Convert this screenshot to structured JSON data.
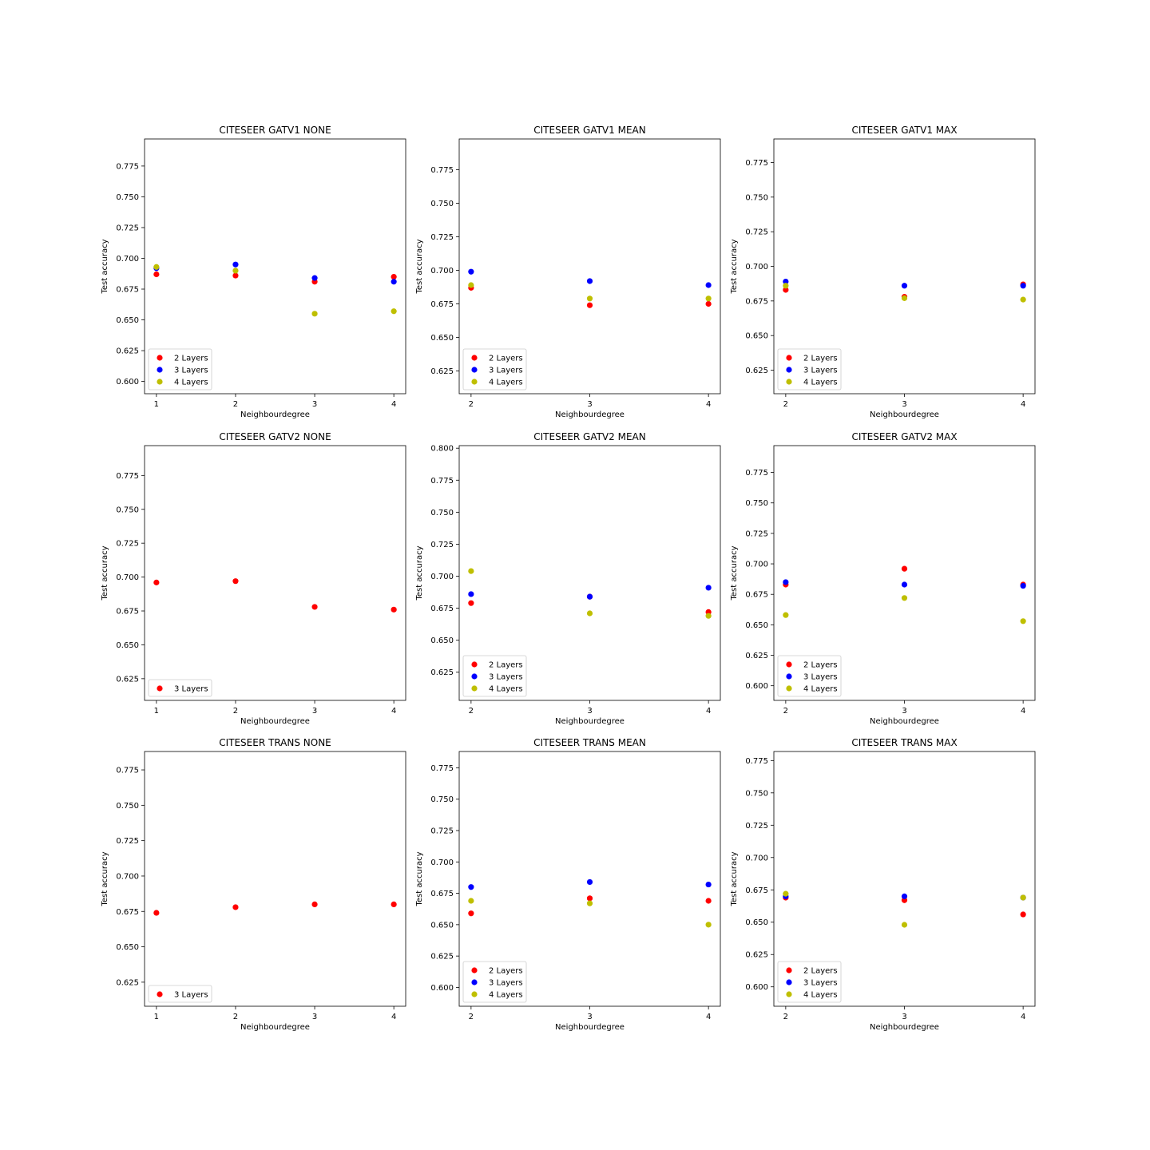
{
  "chart_data": [
    {
      "type": "scatter",
      "title": "CITESEER   GATV1   NONE",
      "xlabel": "Neighbourdegree",
      "ylabel": "Test accuracy",
      "x": [
        1,
        2,
        3,
        4
      ],
      "xticks": [
        "1",
        "2",
        "3",
        "4"
      ],
      "xlim": [
        0.85,
        4.15
      ],
      "ylim": [
        0.59,
        0.797
      ],
      "yticks": [
        "0.600",
        "0.625",
        "0.650",
        "0.675",
        "0.700",
        "0.725",
        "0.750",
        "0.775"
      ],
      "grid": false,
      "legend_position": "lower-left",
      "series": [
        {
          "name": "2 Layers",
          "color": "#ff0000",
          "values": [
            0.687,
            0.686,
            0.681,
            0.685
          ]
        },
        {
          "name": "3 Layers",
          "color": "#0000ff",
          "values": [
            0.692,
            0.695,
            0.684,
            0.681
          ]
        },
        {
          "name": "4 Layers",
          "color": "#bfbf00",
          "values": [
            0.693,
            0.69,
            0.655,
            0.657
          ]
        }
      ]
    },
    {
      "type": "scatter",
      "title": "CITESEER   GATV1   MEAN",
      "xlabel": "Neighbourdegree",
      "ylabel": "Test accuracy",
      "x": [
        2,
        3,
        4
      ],
      "xticks": [
        "2",
        "3",
        "4"
      ],
      "xlim": [
        1.9,
        4.1
      ],
      "ylim": [
        0.608,
        0.798
      ],
      "yticks": [
        "0.625",
        "0.650",
        "0.675",
        "0.700",
        "0.725",
        "0.750",
        "0.775"
      ],
      "grid": false,
      "legend_position": "lower-left",
      "series": [
        {
          "name": "2 Layers",
          "color": "#ff0000",
          "values": [
            0.687,
            0.674,
            0.675
          ]
        },
        {
          "name": "3 Layers",
          "color": "#0000ff",
          "values": [
            0.699,
            0.692,
            0.689
          ]
        },
        {
          "name": "4 Layers",
          "color": "#bfbf00",
          "values": [
            0.689,
            0.679,
            0.679
          ]
        }
      ]
    },
    {
      "type": "scatter",
      "title": "CITESEER   GATV1   MAX",
      "xlabel": "Neighbourdegree",
      "ylabel": "Test accuracy",
      "x": [
        2,
        3,
        4
      ],
      "xticks": [
        "2",
        "3",
        "4"
      ],
      "xlim": [
        1.9,
        4.1
      ],
      "ylim": [
        0.608,
        0.792
      ],
      "yticks": [
        "0.625",
        "0.650",
        "0.675",
        "0.700",
        "0.725",
        "0.750",
        "0.775"
      ],
      "grid": false,
      "legend_position": "lower-left",
      "series": [
        {
          "name": "2 Layers",
          "color": "#ff0000",
          "values": [
            0.683,
            0.678,
            0.687
          ]
        },
        {
          "name": "3 Layers",
          "color": "#0000ff",
          "values": [
            0.689,
            0.686,
            0.686
          ]
        },
        {
          "name": "4 Layers",
          "color": "#bfbf00",
          "values": [
            0.686,
            0.677,
            0.676
          ]
        }
      ]
    },
    {
      "type": "scatter",
      "title": "CITESEER   GATV2   NONE",
      "xlabel": "Neighbourdegree",
      "ylabel": "Test accuracy",
      "x": [
        1,
        2,
        3,
        4
      ],
      "xticks": [
        "1",
        "2",
        "3",
        "4"
      ],
      "xlim": [
        0.85,
        4.15
      ],
      "ylim": [
        0.609,
        0.797
      ],
      "yticks": [
        "0.625",
        "0.650",
        "0.675",
        "0.700",
        "0.725",
        "0.750",
        "0.775"
      ],
      "grid": false,
      "legend_position": "lower-left",
      "series": [
        {
          "name": "3 Layers",
          "color": "#ff0000",
          "values": [
            0.696,
            0.697,
            0.678,
            0.676
          ]
        }
      ]
    },
    {
      "type": "scatter",
      "title": "CITESEER   GATV2   MEAN",
      "xlabel": "Neighbourdegree",
      "ylabel": "Test accuracy",
      "x": [
        2,
        3,
        4
      ],
      "xticks": [
        "2",
        "3",
        "4"
      ],
      "xlim": [
        1.9,
        4.1
      ],
      "ylim": [
        0.603,
        0.802
      ],
      "yticks": [
        "0.625",
        "0.650",
        "0.675",
        "0.700",
        "0.725",
        "0.750",
        "0.775",
        "0.800"
      ],
      "grid": false,
      "legend_position": "lower-left",
      "series": [
        {
          "name": "2 Layers",
          "color": "#ff0000",
          "values": [
            0.679,
            0.684,
            0.672
          ]
        },
        {
          "name": "3 Layers",
          "color": "#0000ff",
          "values": [
            0.686,
            0.684,
            0.691
          ]
        },
        {
          "name": "4 Layers",
          "color": "#bfbf00",
          "values": [
            0.704,
            0.671,
            0.669
          ]
        }
      ]
    },
    {
      "type": "scatter",
      "title": "CITESEER   GATV2   MAX",
      "xlabel": "Neighbourdegree",
      "ylabel": "Test accuracy",
      "x": [
        2,
        3,
        4
      ],
      "xticks": [
        "2",
        "3",
        "4"
      ],
      "xlim": [
        1.9,
        4.1
      ],
      "ylim": [
        0.588,
        0.797
      ],
      "yticks": [
        "0.600",
        "0.625",
        "0.650",
        "0.675",
        "0.700",
        "0.725",
        "0.750",
        "0.775"
      ],
      "grid": false,
      "legend_position": "lower-left",
      "series": [
        {
          "name": "2 Layers",
          "color": "#ff0000",
          "values": [
            0.683,
            0.696,
            0.683
          ]
        },
        {
          "name": "3 Layers",
          "color": "#0000ff",
          "values": [
            0.685,
            0.683,
            0.682
          ]
        },
        {
          "name": "4 Layers",
          "color": "#bfbf00",
          "values": [
            0.658,
            0.672,
            0.653
          ]
        }
      ]
    },
    {
      "type": "scatter",
      "title": "CITESEER   TRANS   NONE",
      "xlabel": "Neighbourdegree",
      "ylabel": "Test accuracy",
      "x": [
        1,
        2,
        3,
        4
      ],
      "xticks": [
        "1",
        "2",
        "3",
        "4"
      ],
      "xlim": [
        0.85,
        4.15
      ],
      "ylim": [
        0.608,
        0.788
      ],
      "yticks": [
        "0.625",
        "0.650",
        "0.675",
        "0.700",
        "0.725",
        "0.750",
        "0.775"
      ],
      "grid": false,
      "legend_position": "lower-left",
      "series": [
        {
          "name": "3 Layers",
          "color": "#ff0000",
          "values": [
            0.674,
            0.678,
            0.68,
            0.68
          ]
        }
      ]
    },
    {
      "type": "scatter",
      "title": "CITESEER   TRANS   MEAN",
      "xlabel": "Neighbourdegree",
      "ylabel": "Test accuracy",
      "x": [
        2,
        3,
        4
      ],
      "xticks": [
        "2",
        "3",
        "4"
      ],
      "xlim": [
        1.9,
        4.1
      ],
      "ylim": [
        0.585,
        0.788
      ],
      "yticks": [
        "0.600",
        "0.625",
        "0.650",
        "0.675",
        "0.700",
        "0.725",
        "0.750",
        "0.775"
      ],
      "grid": false,
      "legend_position": "lower-left",
      "series": [
        {
          "name": "2 Layers",
          "color": "#ff0000",
          "values": [
            0.659,
            0.671,
            0.669
          ]
        },
        {
          "name": "3 Layers",
          "color": "#0000ff",
          "values": [
            0.68,
            0.684,
            0.682
          ]
        },
        {
          "name": "4 Layers",
          "color": "#bfbf00",
          "values": [
            0.669,
            0.667,
            0.65
          ]
        }
      ]
    },
    {
      "type": "scatter",
      "title": "CITESEER   TRANS   MAX",
      "xlabel": "Neighbourdegree",
      "ylabel": "Test accuracy",
      "x": [
        2,
        3,
        4
      ],
      "xticks": [
        "2",
        "3",
        "4"
      ],
      "xlim": [
        1.9,
        4.1
      ],
      "ylim": [
        0.585,
        0.782
      ],
      "yticks": [
        "0.600",
        "0.625",
        "0.650",
        "0.675",
        "0.700",
        "0.725",
        "0.750",
        "0.775"
      ],
      "grid": false,
      "legend_position": "lower-left",
      "series": [
        {
          "name": "2 Layers",
          "color": "#ff0000",
          "values": [
            0.669,
            0.667,
            0.656
          ]
        },
        {
          "name": "3 Layers",
          "color": "#0000ff",
          "values": [
            0.67,
            0.67,
            0.669
          ]
        },
        {
          "name": "4 Layers",
          "color": "#bfbf00",
          "values": [
            0.672,
            0.648,
            0.669
          ]
        }
      ]
    }
  ]
}
